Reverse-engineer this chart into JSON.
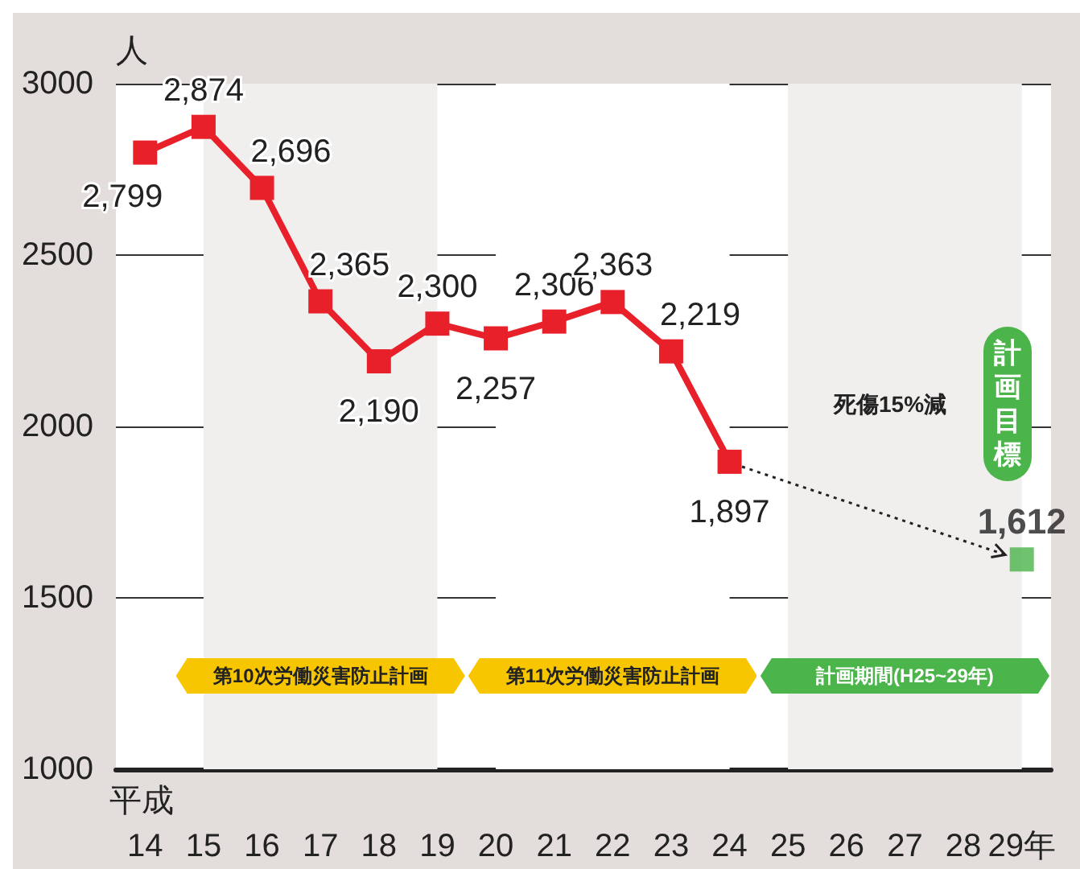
{
  "chart_data": {
    "type": "line",
    "ylabel": "人",
    "xlabel": "平成",
    "categories": [
      "14",
      "15",
      "16",
      "17",
      "18",
      "19",
      "20",
      "21",
      "22",
      "23",
      "24",
      "25",
      "26",
      "27",
      "28",
      "29年"
    ],
    "series": [
      {
        "color": "#e8202a",
        "marker": "square",
        "values": [
          2799,
          2874,
          2696,
          2365,
          2190,
          2300,
          2257,
          2306,
          2363,
          2219,
          1897,
          null,
          null,
          null,
          null,
          null
        ],
        "value_labels": [
          "2,799",
          "2,874",
          "2,696",
          "2,365",
          "2,190",
          "2,300",
          "2,257",
          "2,306",
          "2,363",
          "2,219",
          "1,897",
          null,
          null,
          null,
          null,
          null
        ]
      },
      {
        "type": "scatter",
        "color": "#4bb44a",
        "marker": "square",
        "values": [
          null,
          null,
          null,
          null,
          null,
          null,
          null,
          null,
          null,
          null,
          null,
          null,
          null,
          null,
          null,
          1612
        ],
        "value_labels": [
          null,
          null,
          null,
          null,
          null,
          null,
          null,
          null,
          null,
          null,
          null,
          null,
          null,
          null,
          null,
          "1,612"
        ]
      }
    ],
    "ylim": [
      1000,
      3000
    ],
    "yticks": [
      1000,
      1500,
      2000,
      2500,
      3000
    ],
    "grid": "y",
    "bands": [
      {
        "axis": "x",
        "from": "15",
        "to": "19",
        "label": "第10次労働災害防止計画",
        "color": "#f1efee"
      },
      {
        "axis": "x",
        "from": "20",
        "to": "24",
        "label": "第11次労働災害防止計画",
        "color": "#ffffff"
      },
      {
        "axis": "x",
        "from": "25",
        "to": "29年",
        "label": "計画期間(H25~29年)",
        "color": "#f1efee"
      }
    ],
    "annotations": [
      "死傷15%減",
      "計画目標"
    ]
  }
}
